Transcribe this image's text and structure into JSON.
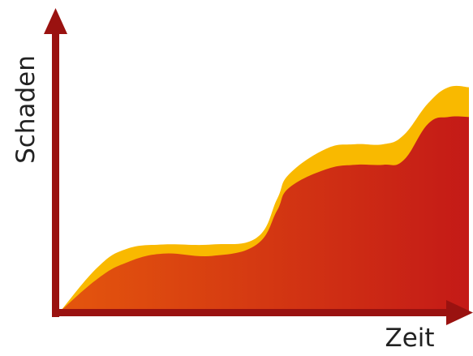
{
  "chart_data": {
    "type": "area",
    "title": "",
    "xlabel": "Zeit",
    "ylabel": "Schaden",
    "xlim": [
      0,
      100
    ],
    "ylim": [
      0,
      100
    ],
    "grid": false,
    "legend": "none",
    "x": [
      0,
      9,
      16,
      25,
      37,
      48,
      53,
      56,
      65,
      72,
      79,
      84,
      90,
      95,
      100
    ],
    "series": [
      {
        "role": "upper",
        "color": "#f9b900",
        "values": [
          0,
          19,
          27,
          29,
          29,
          32,
          49,
          60,
          71,
          73,
          73,
          77,
          91,
          98,
          98
        ]
      },
      {
        "role": "lower",
        "colors": [
          "#e4560d",
          "#c41a17"
        ],
        "values": [
          0,
          14,
          21,
          25,
          24,
          29,
          44,
          54,
          62,
          64,
          64,
          66,
          82,
          85,
          85
        ]
      }
    ],
    "axis_color": "#9a1210"
  }
}
